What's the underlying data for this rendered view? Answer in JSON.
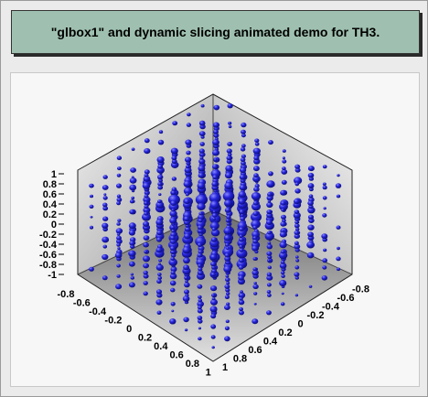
{
  "title": "\"glbox1\" and dynamic slicing animated demo for TH3.",
  "colors": {
    "title_bg": "#9fc0b0",
    "box_light": "#e6e6e6",
    "box_dark": "#8a8a8a",
    "marker": "#2323d8"
  },
  "chart_data": {
    "type": "scatter",
    "subtype": "3D histogram (TH3) glbox",
    "title": "",
    "axes": {
      "z": {
        "range": [
          -1,
          1
        ],
        "ticks": [
          "1",
          "0.8",
          "0.6",
          "0.4",
          "0.2",
          "0",
          "-0.2",
          "-0.4",
          "-0.6",
          "-0.8",
          "-1"
        ]
      },
      "x": {
        "range": [
          -1,
          1
        ],
        "ticks": [
          "-0.8",
          "-0.6",
          "-0.4",
          "-0.2",
          "0",
          "0.2",
          "0.4",
          "0.6",
          "0.8",
          "1"
        ]
      },
      "y": {
        "range": [
          -1,
          1
        ],
        "ticks": [
          "1",
          "0.8",
          "0.6",
          "0.4",
          "0.2",
          "0",
          "-0.2",
          "-0.4",
          "-0.6",
          "-0.8"
        ]
      }
    },
    "grid": false,
    "marker_shape": "ellipsoid"
  }
}
